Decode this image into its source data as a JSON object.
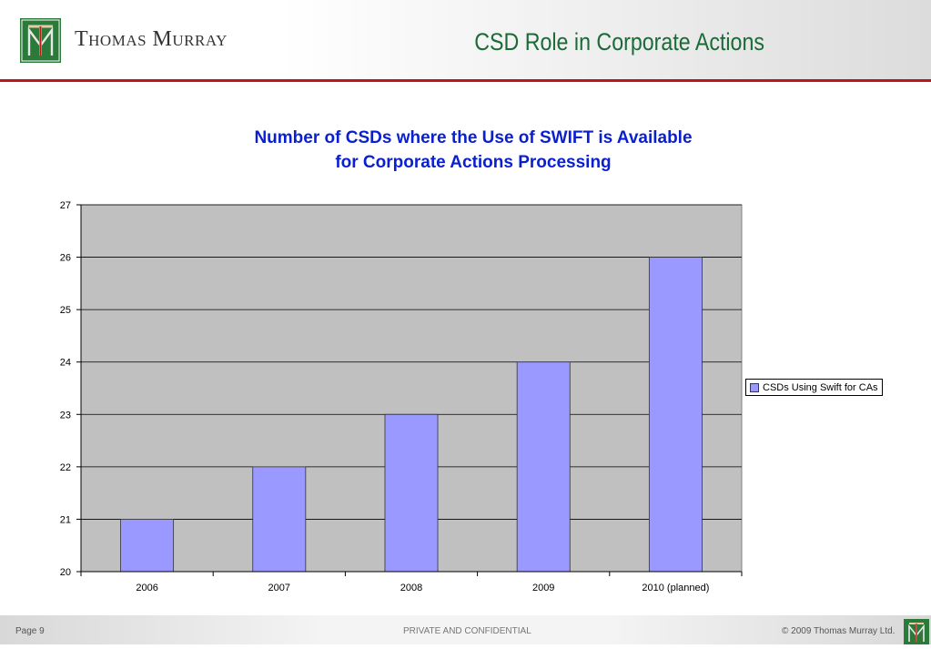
{
  "header": {
    "brand_name": "Thomas Murray",
    "slide_title": "CSD Role in Corporate Actions",
    "logo_text": "TM"
  },
  "chart_data": {
    "type": "bar",
    "title_line1": "Number of CSDs where the Use of SWIFT is Available",
    "title_line2": "for Corporate Actions Processing",
    "categories": [
      "2006",
      "2007",
      "2008",
      "2009",
      "2010 (planned)"
    ],
    "series": [
      {
        "name": "CSDs Using Swift for CAs",
        "values": [
          21,
          22,
          23,
          24,
          26
        ]
      }
    ],
    "ylim": [
      20,
      27
    ],
    "yticks": [
      "20",
      "21",
      "22",
      "23",
      "24",
      "25",
      "26",
      "27"
    ],
    "grid": true,
    "legend_position": "right",
    "colors": {
      "bar": "#9999ff",
      "plot_background": "#c0c0c0"
    }
  },
  "footer": {
    "page": "Page 9",
    "confidential": "PRIVATE AND CONFIDENTIAL",
    "copyright": "© 2009 Thomas Murray Ltd."
  },
  "colors": {
    "brand_green": "#2a7a3a",
    "accent_red": "#c0141b",
    "title_blue": "#0a1fd0"
  }
}
